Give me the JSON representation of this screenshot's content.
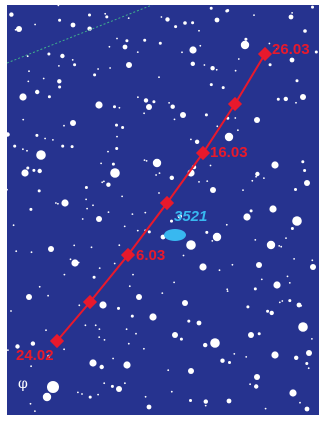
{
  "map": {
    "colors": {
      "sky": "#26338f",
      "stars": "#ffffff",
      "path": "#e8192c",
      "object": "#38b8f0",
      "boundary": "#3fae8c"
    },
    "path_dates": [
      "26.03",
      "16.03",
      "6.03",
      "24.02"
    ],
    "object_label": "3521",
    "star_label": "φ"
  }
}
